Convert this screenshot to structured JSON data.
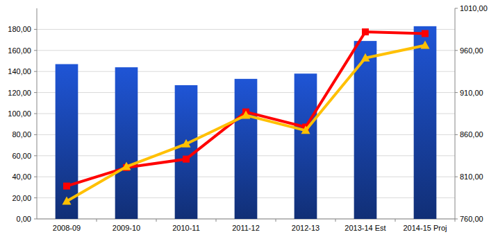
{
  "chart_data": {
    "type": "bar",
    "categories": [
      "2008-09",
      "2009-10",
      "2010-11",
      "2011-12",
      "2012-13",
      "2013-14 Est",
      "2014-15 Proj"
    ],
    "series": [
      {
        "type": "bar",
        "color": "#1f55d6",
        "values": [
          147,
          144,
          127,
          133,
          138,
          169,
          183
        ]
      },
      {
        "type": "line",
        "color": "#ff0000",
        "marker": "square",
        "axis": "y2",
        "values": [
          799,
          821,
          831,
          887,
          869,
          982,
          980
        ]
      },
      {
        "type": "line",
        "color": "#ffc000",
        "marker": "triangle",
        "axis": "y2",
        "values": [
          781,
          822,
          849,
          883,
          865,
          951,
          966
        ]
      }
    ],
    "ylim": [
      0,
      200
    ],
    "yticks": [
      {
        "value": 0,
        "label": "0,00"
      },
      {
        "value": 20,
        "label": "20,00"
      },
      {
        "value": 40,
        "label": "40,00"
      },
      {
        "value": 60,
        "label": "60,00"
      },
      {
        "value": 80,
        "label": "80,00"
      },
      {
        "value": 100,
        "label": "100,00"
      },
      {
        "value": 120,
        "label": "120,00"
      },
      {
        "value": 140,
        "label": "140,00"
      },
      {
        "value": 160,
        "label": "160,00"
      },
      {
        "value": 180,
        "label": "180,00"
      }
    ],
    "y2lim": [
      760,
      1010
    ],
    "y2ticks": [
      {
        "value": 760,
        "label": "760,00"
      },
      {
        "value": 810,
        "label": "810,00"
      },
      {
        "value": 860,
        "label": "860,00"
      },
      {
        "value": 910,
        "label": "910,00"
      },
      {
        "value": 960,
        "label": "960,00"
      },
      {
        "value": 1010,
        "label": "1010,00"
      }
    ],
    "grid": true
  }
}
